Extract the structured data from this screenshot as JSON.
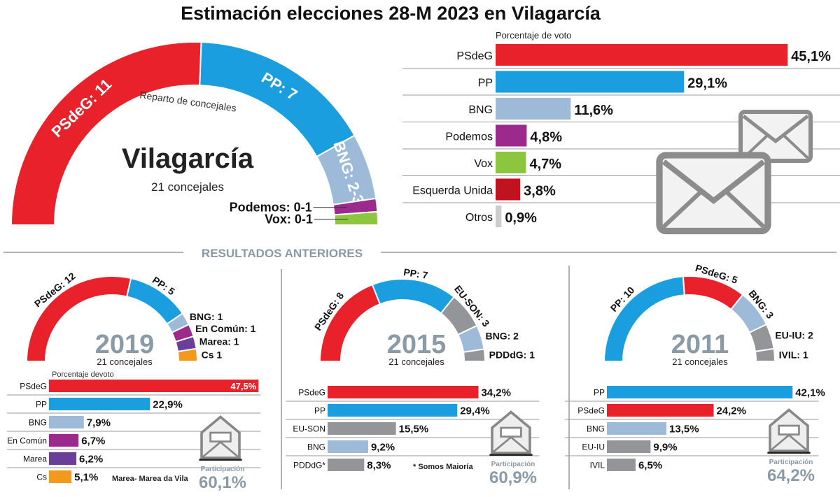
{
  "title": "Estimación elecciones 28-M 2023 en Vilagarcía",
  "colors": {
    "PSdeG": "#e8212b",
    "PP": "#1a9ee0",
    "BNG": "#9dbad9",
    "Podemos": "#9b2a8c",
    "Vox": "#8cc63f",
    "EU": "#c1121f",
    "Otros": "#cccccc",
    "EnComun": "#9b2a8c",
    "Marea": "#6a3f97",
    "Cs": "#f39a1e",
    "Grey": "#939598"
  },
  "chart_data": [
    {
      "type": "hemicycle",
      "name": "Vilagarcía",
      "subtitle": "21 concejales",
      "caption": "Reparto de concejales",
      "seats": [
        {
          "party": "PSdeG",
          "label": "PSdeG: 11",
          "value": 11,
          "color": "#e8212b"
        },
        {
          "party": "PP",
          "label": "PP: 7",
          "value": 7,
          "color": "#1a9ee0"
        },
        {
          "party": "BNG",
          "label": "BNG: 2-3",
          "value": 2.5,
          "color": "#9dbad9"
        },
        {
          "party": "Podemos",
          "label": "Podemos: 0-1",
          "value": 0.5,
          "color": "#9b2a8c"
        },
        {
          "party": "Vox",
          "label": "Vox: 0-1",
          "value": 0.5,
          "color": "#8cc63f"
        }
      ]
    },
    {
      "type": "bar",
      "title": "Porcentaje de voto",
      "categories": [
        "PSdeG",
        "PP",
        "BNG",
        "Podemos",
        "Vox",
        "Esquerda Unida",
        "Otros"
      ],
      "values": [
        45.1,
        29.1,
        11.6,
        4.8,
        4.7,
        3.8,
        0.9
      ],
      "value_labels": [
        "45,1%",
        "29,1%",
        "11,6%",
        "4,8%",
        "4,7%",
        "3,8%",
        "0,9%"
      ],
      "colors": [
        "#e8212b",
        "#1a9ee0",
        "#9dbad9",
        "#9b2a8c",
        "#8cc63f",
        "#c1121f",
        "#cccccc"
      ]
    },
    {
      "type": "hemicycle",
      "year": "2019",
      "subtitle": "21 concejales",
      "seats": [
        {
          "label": "PSdeG: 12",
          "value": 12,
          "color": "#e8212b"
        },
        {
          "label": "PP: 5",
          "value": 5,
          "color": "#1a9ee0"
        },
        {
          "label": "BNG: 1",
          "value": 1,
          "color": "#9dbad9"
        },
        {
          "label": "En Común: 1",
          "value": 1,
          "color": "#9b2a8c"
        },
        {
          "label": "Marea: 1",
          "value": 1,
          "color": "#6a3f97"
        },
        {
          "label": "Cs 1",
          "value": 1,
          "color": "#f39a1e"
        }
      ],
      "bars": {
        "title": "Porcentaje devoto",
        "categories": [
          "PSdeG",
          "PP",
          "BNG",
          "En Común",
          "Marea",
          "Cs"
        ],
        "values": [
          47.5,
          22.9,
          7.9,
          6.7,
          6.2,
          5.1
        ],
        "value_labels": [
          "47,5%",
          "22,9%",
          "7,9%",
          "6,7%",
          "6,2%",
          "5,1%"
        ],
        "colors": [
          "#e8212b",
          "#1a9ee0",
          "#9dbad9",
          "#9b2a8c",
          "#6a3f97",
          "#f39a1e"
        ]
      },
      "note": "Marea- Marea da Vila",
      "participation_label": "Participación",
      "participation": "60,1%"
    },
    {
      "type": "hemicycle",
      "year": "2015",
      "subtitle": "21 concejales",
      "seats": [
        {
          "label": "PSdeG: 8",
          "value": 8,
          "color": "#e8212b"
        },
        {
          "label": "PP: 7",
          "value": 7,
          "color": "#1a9ee0"
        },
        {
          "label": "EU-SON: 3",
          "value": 3,
          "color": "#939598"
        },
        {
          "label": "BNG: 2",
          "value": 2,
          "color": "#9dbad9"
        },
        {
          "label": "PDDdG: 1",
          "value": 1,
          "color": "#939598"
        }
      ],
      "bars": {
        "title": "",
        "categories": [
          "PSdeG",
          "PP",
          "EU-SON",
          "BNG",
          "PDDdG*"
        ],
        "values": [
          34.2,
          29.4,
          15.5,
          9.2,
          8.3
        ],
        "value_labels": [
          "34,2%",
          "29,4%",
          "15,5%",
          "9,2%",
          "8,3%"
        ],
        "colors": [
          "#e8212b",
          "#1a9ee0",
          "#939598",
          "#9dbad9",
          "#939598"
        ]
      },
      "note": "* Somos Maioría",
      "participation_label": "Participación",
      "participation": "60,9%"
    },
    {
      "type": "hemicycle",
      "year": "2011",
      "subtitle": "21 concejales",
      "seats": [
        {
          "label": "PP: 10",
          "value": 10,
          "color": "#1a9ee0"
        },
        {
          "label": "PSdeG: 5",
          "value": 5,
          "color": "#e8212b"
        },
        {
          "label": "BNG: 3",
          "value": 3,
          "color": "#9dbad9"
        },
        {
          "label": "EU-IU: 2",
          "value": 2,
          "color": "#939598"
        },
        {
          "label": "IVIL: 1",
          "value": 1,
          "color": "#939598"
        }
      ],
      "bars": {
        "title": "",
        "categories": [
          "PP",
          "PSdeG",
          "BNG",
          "EU-IU",
          "IVIL"
        ],
        "values": [
          42.1,
          24.2,
          13.5,
          9.9,
          6.5
        ],
        "value_labels": [
          "42,1%",
          "24,2%",
          "13,5%",
          "9,9%",
          "6,5%"
        ],
        "colors": [
          "#1a9ee0",
          "#e8212b",
          "#9dbad9",
          "#939598",
          "#939598"
        ]
      },
      "note": "",
      "participation_label": "Participación",
      "participation": "64,2%"
    }
  ],
  "section_label": "RESULTADOS ANTERIORES"
}
